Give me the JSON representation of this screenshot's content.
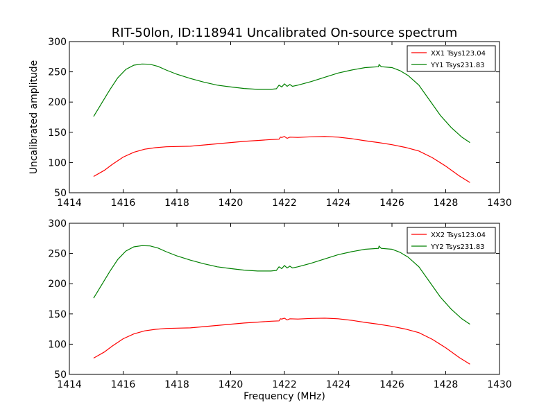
{
  "figure": {
    "title": "RIT-50lon, ID:118941 Uncalibrated On-source spectrum",
    "ylabel": "Uncalibrated amplitude",
    "xlabel": "Frequency (MHz)"
  },
  "chart_data": [
    {
      "type": "line",
      "xlim": [
        1414,
        1430
      ],
      "ylim": [
        50,
        300
      ],
      "xticks": [
        "1414",
        "1416",
        "1418",
        "1420",
        "1422",
        "1424",
        "1426",
        "1428",
        "1430"
      ],
      "yticks": [
        "300",
        "250",
        "200",
        "150",
        "100",
        "50"
      ],
      "legend_position": "top-right",
      "grid": false,
      "series": [
        {
          "name": "XX1 Tsys123.04",
          "color": "#ff0000",
          "x": [
            1414.9,
            1415.3,
            1415.6,
            1416.0,
            1416.4,
            1416.8,
            1417.2,
            1417.6,
            1418.0,
            1418.5,
            1419.0,
            1419.5,
            1420.0,
            1420.5,
            1421.0,
            1421.5,
            1421.8,
            1421.85,
            1421.9,
            1422.0,
            1422.1,
            1422.2,
            1422.5,
            1423.0,
            1423.5,
            1424.0,
            1424.5,
            1425.0,
            1425.5,
            1426.0,
            1426.5,
            1427.0,
            1427.5,
            1428.0,
            1428.5,
            1428.9
          ],
          "y": [
            77,
            87,
            97,
            109,
            117,
            122,
            124.5,
            126,
            126.5,
            127,
            129,
            131,
            133,
            135,
            136.5,
            138,
            138.5,
            142,
            141.5,
            143,
            140,
            142,
            141.5,
            142.5,
            143,
            142,
            139.5,
            136,
            133,
            129.5,
            125,
            119,
            108,
            94,
            78,
            67
          ]
        },
        {
          "name": "YY1 Tsys231.83",
          "color": "#008000",
          "x": [
            1414.9,
            1415.2,
            1415.5,
            1415.8,
            1416.1,
            1416.4,
            1416.7,
            1417.0,
            1417.3,
            1417.6,
            1418.0,
            1418.5,
            1419.0,
            1419.5,
            1420.0,
            1420.5,
            1421.0,
            1421.5,
            1421.7,
            1421.8,
            1421.9,
            1422.0,
            1422.1,
            1422.2,
            1422.3,
            1422.5,
            1423.0,
            1423.5,
            1424.0,
            1424.5,
            1425.0,
            1425.5,
            1425.52,
            1425.6,
            1426.0,
            1426.3,
            1426.6,
            1427.0,
            1427.4,
            1427.8,
            1428.2,
            1428.6,
            1428.9
          ],
          "y": [
            176,
            198,
            220,
            240,
            254,
            261,
            263,
            262.5,
            259,
            253,
            246,
            239,
            233,
            228,
            225,
            222.5,
            221,
            221,
            222,
            228,
            225,
            230,
            226,
            229,
            226,
            228,
            234,
            241,
            248,
            253,
            257,
            258.5,
            262,
            258.5,
            257,
            252,
            244,
            228,
            203,
            178,
            158,
            142,
            133
          ]
        }
      ]
    },
    {
      "type": "line",
      "xlim": [
        1414,
        1430
      ],
      "ylim": [
        50,
        300
      ],
      "xticks": [
        "1414",
        "1416",
        "1418",
        "1420",
        "1422",
        "1424",
        "1426",
        "1428",
        "1430"
      ],
      "yticks": [
        "300",
        "250",
        "200",
        "150",
        "100",
        "50"
      ],
      "legend_position": "top-right",
      "grid": false,
      "series": [
        {
          "name": "XX2 Tsys123.04",
          "color": "#ff0000",
          "x": [
            1414.9,
            1415.3,
            1415.6,
            1416.0,
            1416.4,
            1416.8,
            1417.2,
            1417.6,
            1418.0,
            1418.5,
            1419.0,
            1419.5,
            1420.0,
            1420.5,
            1421.0,
            1421.5,
            1421.8,
            1421.85,
            1421.9,
            1422.0,
            1422.1,
            1422.2,
            1422.5,
            1423.0,
            1423.5,
            1424.0,
            1424.5,
            1425.0,
            1425.5,
            1426.0,
            1426.5,
            1427.0,
            1427.5,
            1428.0,
            1428.5,
            1428.9
          ],
          "y": [
            77,
            87,
            97,
            109,
            117,
            122,
            124.5,
            126,
            126.5,
            127,
            129,
            131,
            133,
            135,
            136.5,
            138,
            138.5,
            142,
            141.5,
            143,
            140,
            142,
            141.5,
            142.5,
            143,
            142,
            139.5,
            136,
            133,
            129.5,
            125,
            119,
            108,
            94,
            78,
            67
          ]
        },
        {
          "name": "YY2 Tsys231.83",
          "color": "#008000",
          "x": [
            1414.9,
            1415.2,
            1415.5,
            1415.8,
            1416.1,
            1416.4,
            1416.7,
            1417.0,
            1417.3,
            1417.6,
            1418.0,
            1418.5,
            1419.0,
            1419.5,
            1420.0,
            1420.5,
            1421.0,
            1421.5,
            1421.7,
            1421.8,
            1421.9,
            1422.0,
            1422.1,
            1422.2,
            1422.3,
            1422.5,
            1423.0,
            1423.5,
            1424.0,
            1424.5,
            1425.0,
            1425.5,
            1425.52,
            1425.6,
            1426.0,
            1426.3,
            1426.6,
            1427.0,
            1427.4,
            1427.8,
            1428.2,
            1428.6,
            1428.9
          ],
          "y": [
            176,
            198,
            220,
            240,
            254,
            261,
            263,
            262.5,
            259,
            253,
            246,
            239,
            233,
            228,
            225,
            222.5,
            221,
            221,
            222,
            228,
            225,
            230,
            226,
            229,
            226,
            228,
            234,
            241,
            248,
            253,
            257,
            258.5,
            262,
            258.5,
            257,
            252,
            244,
            228,
            203,
            178,
            158,
            142,
            133
          ]
        }
      ]
    }
  ]
}
